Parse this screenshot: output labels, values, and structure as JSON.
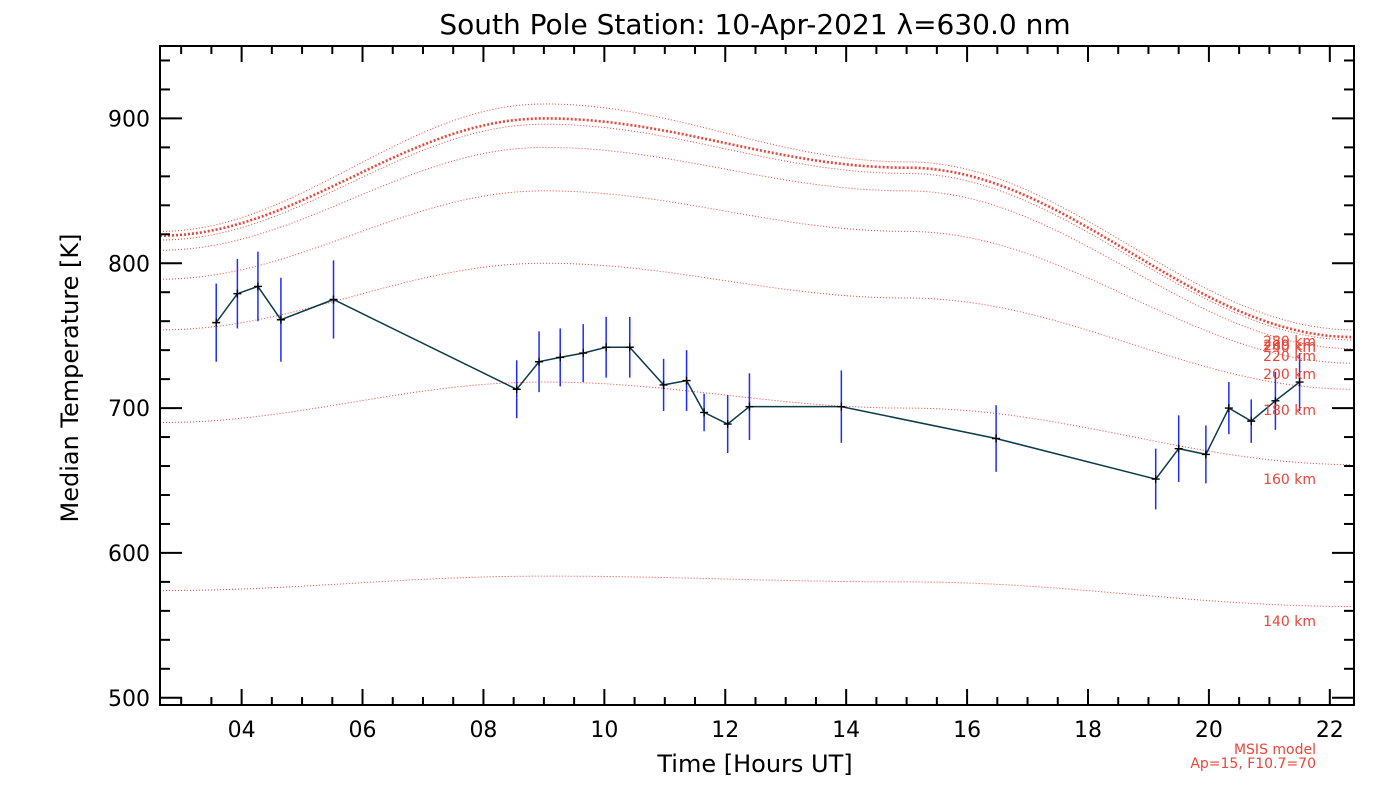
{
  "chart_data": {
    "type": "line",
    "title": "South Pole Station: 10-Apr-2021 λ=630.0 nm",
    "xlabel": "Time [Hours UT]",
    "ylabel": "Median Temperature [K]",
    "xlim": [
      2.65,
      22.4
    ],
    "ylim": [
      495,
      950
    ],
    "x_ticks": [
      4,
      6,
      8,
      10,
      12,
      14,
      16,
      18,
      20,
      22
    ],
    "x_tick_labels": [
      "04",
      "06",
      "08",
      "10",
      "12",
      "14",
      "16",
      "18",
      "20",
      "22"
    ],
    "y_ticks": [
      500,
      600,
      700,
      800,
      900
    ],
    "y_tick_labels": [
      "500",
      "600",
      "700",
      "800",
      "900"
    ],
    "measured_series": {
      "name": "Median Temperature",
      "color": "#000000",
      "error_color": "#1c2cff",
      "points": [
        {
          "t": 3.58,
          "T": 759,
          "err": 27
        },
        {
          "t": 3.93,
          "T": 779,
          "err": 24
        },
        {
          "t": 4.27,
          "T": 784,
          "err": 24
        },
        {
          "t": 4.65,
          "T": 761,
          "err": 29
        },
        {
          "t": 5.52,
          "T": 775,
          "err": 27
        },
        {
          "t": 8.55,
          "T": 713,
          "err": 20
        },
        {
          "t": 8.92,
          "T": 732,
          "err": 21
        },
        {
          "t": 9.27,
          "T": 735,
          "err": 20
        },
        {
          "t": 9.65,
          "T": 738,
          "err": 20
        },
        {
          "t": 10.03,
          "T": 742,
          "err": 21
        },
        {
          "t": 10.42,
          "T": 742,
          "err": 21
        },
        {
          "t": 10.98,
          "T": 716,
          "err": 18
        },
        {
          "t": 11.36,
          "T": 719,
          "err": 21
        },
        {
          "t": 11.65,
          "T": 697,
          "err": 13
        },
        {
          "t": 12.04,
          "T": 689,
          "err": 20
        },
        {
          "t": 12.4,
          "T": 701,
          "err": 23
        },
        {
          "t": 13.92,
          "T": 701,
          "err": 25
        },
        {
          "t": 16.48,
          "T": 679,
          "err": 23
        },
        {
          "t": 19.12,
          "T": 651,
          "err": 21
        },
        {
          "t": 19.5,
          "T": 672,
          "err": 23
        },
        {
          "t": 19.95,
          "T": 668,
          "err": 20
        },
        {
          "t": 20.33,
          "T": 700,
          "err": 18
        },
        {
          "t": 20.7,
          "T": 691,
          "err": 15
        },
        {
          "t": 21.1,
          "T": 705,
          "err": 20
        },
        {
          "t": 21.5,
          "T": 718,
          "err": 20
        }
      ]
    },
    "model_series": {
      "name": "MSIS model",
      "color": "#e8463a",
      "series": [
        {
          "label": "140 km",
          "values_at_x": [
            [
              2.65,
              574
            ],
            [
              9,
              584
            ],
            [
              15,
              580
            ],
            [
              22.4,
              563
            ]
          ]
        },
        {
          "label": "160 km",
          "values_at_x": [
            [
              2.65,
              690
            ],
            [
              9,
              718
            ],
            [
              15,
              700
            ],
            [
              22.4,
              661
            ]
          ]
        },
        {
          "label": "180 km",
          "values_at_x": [
            [
              2.65,
              754
            ],
            [
              9,
              800
            ],
            [
              15,
              776
            ],
            [
              22.4,
              713
            ]
          ]
        },
        {
          "label": "200 km",
          "values_at_x": [
            [
              2.65,
              789
            ],
            [
              9,
              850
            ],
            [
              15,
              822
            ],
            [
              22.4,
              731
            ]
          ]
        },
        {
          "label": "220 km",
          "values_at_x": [
            [
              2.65,
              809
            ],
            [
              9,
              880
            ],
            [
              15,
              850
            ],
            [
              22.4,
              741
            ]
          ]
        },
        {
          "label": "240 km",
          "values_at_x": [
            [
              2.65,
              816
            ],
            [
              9,
              896
            ],
            [
              15,
              862
            ],
            [
              22.4,
              747
            ]
          ]
        },
        {
          "label": "260 km",
          "values_at_x": [
            [
              2.65,
              819
            ],
            [
              9,
              900
            ],
            [
              15,
              866
            ],
            [
              22.4,
              749
            ]
          ]
        },
        {
          "label": "280 km",
          "values_at_x": [
            [
              2.65,
              822
            ],
            [
              9,
              910
            ],
            [
              15,
              870
            ],
            [
              22.4,
              754
            ]
          ]
        }
      ],
      "bold_series_label": "260 km"
    },
    "model_labels": [
      {
        "text": "280 km"
      },
      {
        "text": "260 km"
      },
      {
        "text": "240 km"
      },
      {
        "text": "220 km"
      },
      {
        "text": "200 km"
      },
      {
        "text": "180 km"
      },
      {
        "text": "160 km"
      },
      {
        "text": "140 km"
      }
    ],
    "model_note_line1": "MSIS model",
    "model_note_line2": "Ap=15, F10.7=70"
  }
}
